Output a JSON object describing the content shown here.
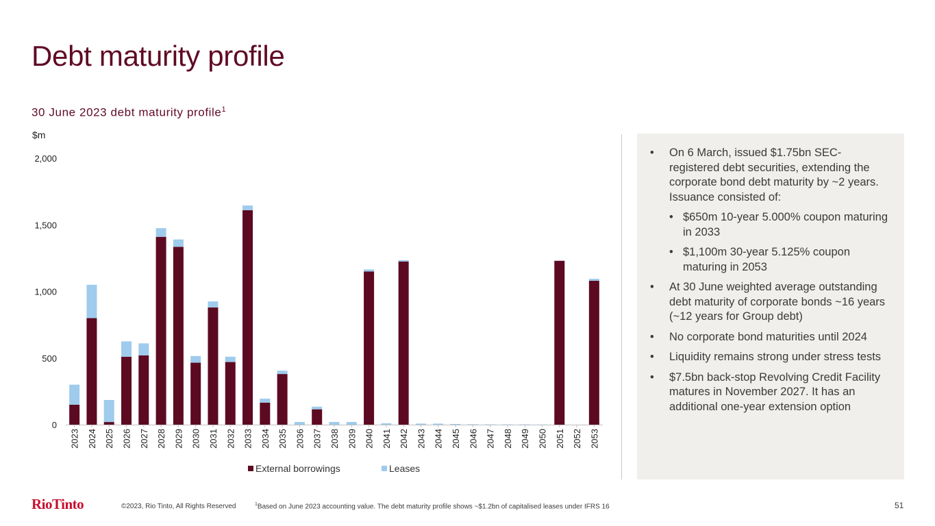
{
  "page": {
    "title": "Debt maturity profile",
    "subtitle": "30 June 2023 debt maturity profile",
    "subtitle_sup": "1",
    "unit_label": "$m",
    "copyright": "©2023, Rio Tinto, All Rights Reserved",
    "footnote_sup": "1",
    "footnote": "Based on June 2023 accounting value. The debt maturity profile shows ~$1.2bn of capitalised leases under IFRS 16",
    "page_number": "51",
    "logo_text": "RioTinto"
  },
  "colors": {
    "title": "#5f0a24",
    "external_borrowings": "#5c0a22",
    "leases": "#9fcbec",
    "panel_bg": "#f0efec",
    "logo": "#c8102e"
  },
  "bullets": [
    {
      "level": 1,
      "text": "On 6 March, issued $1.75bn SEC-registered debt securities, extending the corporate bond debt maturity by ~2 years.  Issuance consisted of:"
    },
    {
      "level": 2,
      "text": "$650m 10-year 5.000% coupon maturing in 2033"
    },
    {
      "level": 2,
      "text": "$1,100m 30-year 5.125% coupon maturing in 2053"
    },
    {
      "level": 1,
      "text": "At 30 June weighted average outstanding debt maturity of corporate bonds ~16 years (~12 years for Group debt)"
    },
    {
      "level": 1,
      "text": "No corporate bond maturities until 2024"
    },
    {
      "level": 1,
      "text": "Liquidity remains strong under stress tests"
    },
    {
      "level": 1,
      "text": "$7.5bn back-stop Revolving Credit Facility matures in November 2027. It has an additional one-year extension option"
    }
  ],
  "chart_data": {
    "type": "bar",
    "stacked": true,
    "categories": [
      "2023",
      "2024",
      "2025",
      "2026",
      "2027",
      "2028",
      "2029",
      "2030",
      "2031",
      "2032",
      "2033",
      "2034",
      "2035",
      "2036",
      "2037",
      "2038",
      "2039",
      "2040",
      "2041",
      "2042",
      "2043",
      "2044",
      "2045",
      "2046",
      "2047",
      "2048",
      "2049",
      "2050",
      "2051",
      "2052",
      "2053"
    ],
    "series": [
      {
        "name": "External borrowings",
        "values": [
          150,
          800,
          20,
          510,
          520,
          1410,
          1335,
          465,
          880,
          470,
          1610,
          165,
          380,
          0,
          115,
          0,
          0,
          1150,
          0,
          1225,
          0,
          0,
          0,
          0,
          0,
          0,
          0,
          0,
          1230,
          0,
          1080
        ]
      },
      {
        "name": "Leases",
        "values": [
          150,
          250,
          165,
          115,
          90,
          65,
          55,
          50,
          45,
          40,
          35,
          30,
          25,
          20,
          20,
          20,
          20,
          15,
          10,
          10,
          8,
          8,
          5,
          3,
          2,
          2,
          2,
          1,
          0,
          0,
          15
        ]
      }
    ],
    "yticks": [
      "0",
      "500",
      "1,000",
      "1,500",
      "2,000"
    ],
    "ytick_values": [
      0,
      500,
      1000,
      1500,
      2000
    ],
    "ylim": [
      0,
      2000
    ],
    "ylabel": "$m",
    "xlabel": "",
    "grid": false,
    "legend": "bottom"
  }
}
